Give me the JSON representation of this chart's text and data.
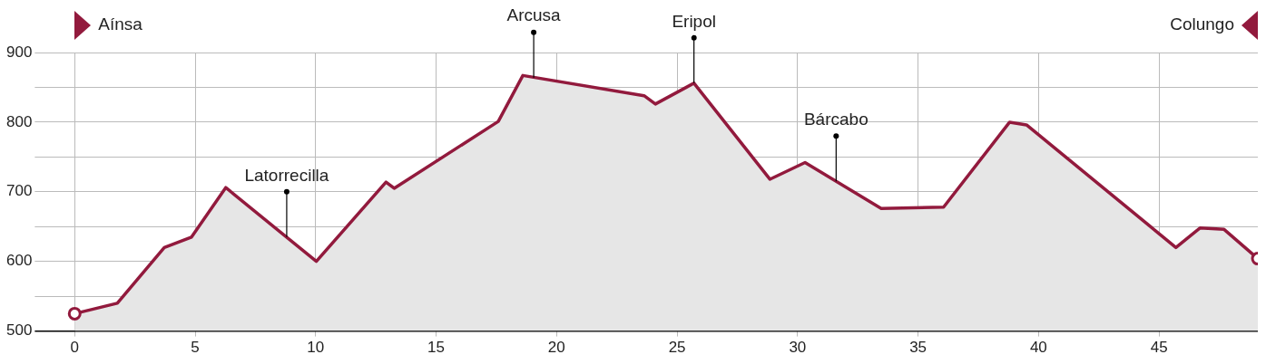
{
  "chart_data": {
    "type": "area",
    "x": [
      0,
      1.77,
      3.72,
      4.85,
      6.27,
      10.03,
      12.92,
      13.26,
      17.58,
      18.6,
      23.63,
      24.1,
      25.7,
      28.85,
      30.31,
      33.47,
      36.06,
      38.8,
      39.5,
      45.7,
      46.7,
      47.7,
      49.1
    ],
    "series": [
      {
        "color": "#921a3d",
        "values": [
          525,
          540,
          620,
          635,
          706,
          600,
          714,
          705,
          801,
          867,
          838,
          826,
          856,
          718,
          742,
          676,
          678,
          800,
          796,
          620,
          648,
          646,
          604
        ]
      }
    ],
    "xlim": [
      -0.9,
      49.1
    ],
    "xticks": [
      0,
      5,
      10,
      15,
      20,
      25,
      30,
      35,
      40,
      45
    ],
    "ylim": [
      500,
      900
    ],
    "yticks": [
      500,
      {
        "value": 550,
        "label": null
      },
      600,
      {
        "value": 650,
        "label": null
      },
      700,
      {
        "value": 750,
        "label": null
      },
      800,
      {
        "value": 850,
        "label": null
      },
      900
    ],
    "grid": true,
    "legend": false,
    "annotations": [
      "Aínsa",
      "Colungo",
      {
        "text": "Latorrecilla",
        "x": 8.8,
        "y": 635
      },
      {
        "text": "Arcusa",
        "x": 19.05,
        "y": 864
      },
      {
        "text": "Eripol",
        "x": 25.7,
        "y": 856
      },
      {
        "text": "Bárcabo",
        "x": 31.6,
        "y": 715
      }
    ]
  }
}
